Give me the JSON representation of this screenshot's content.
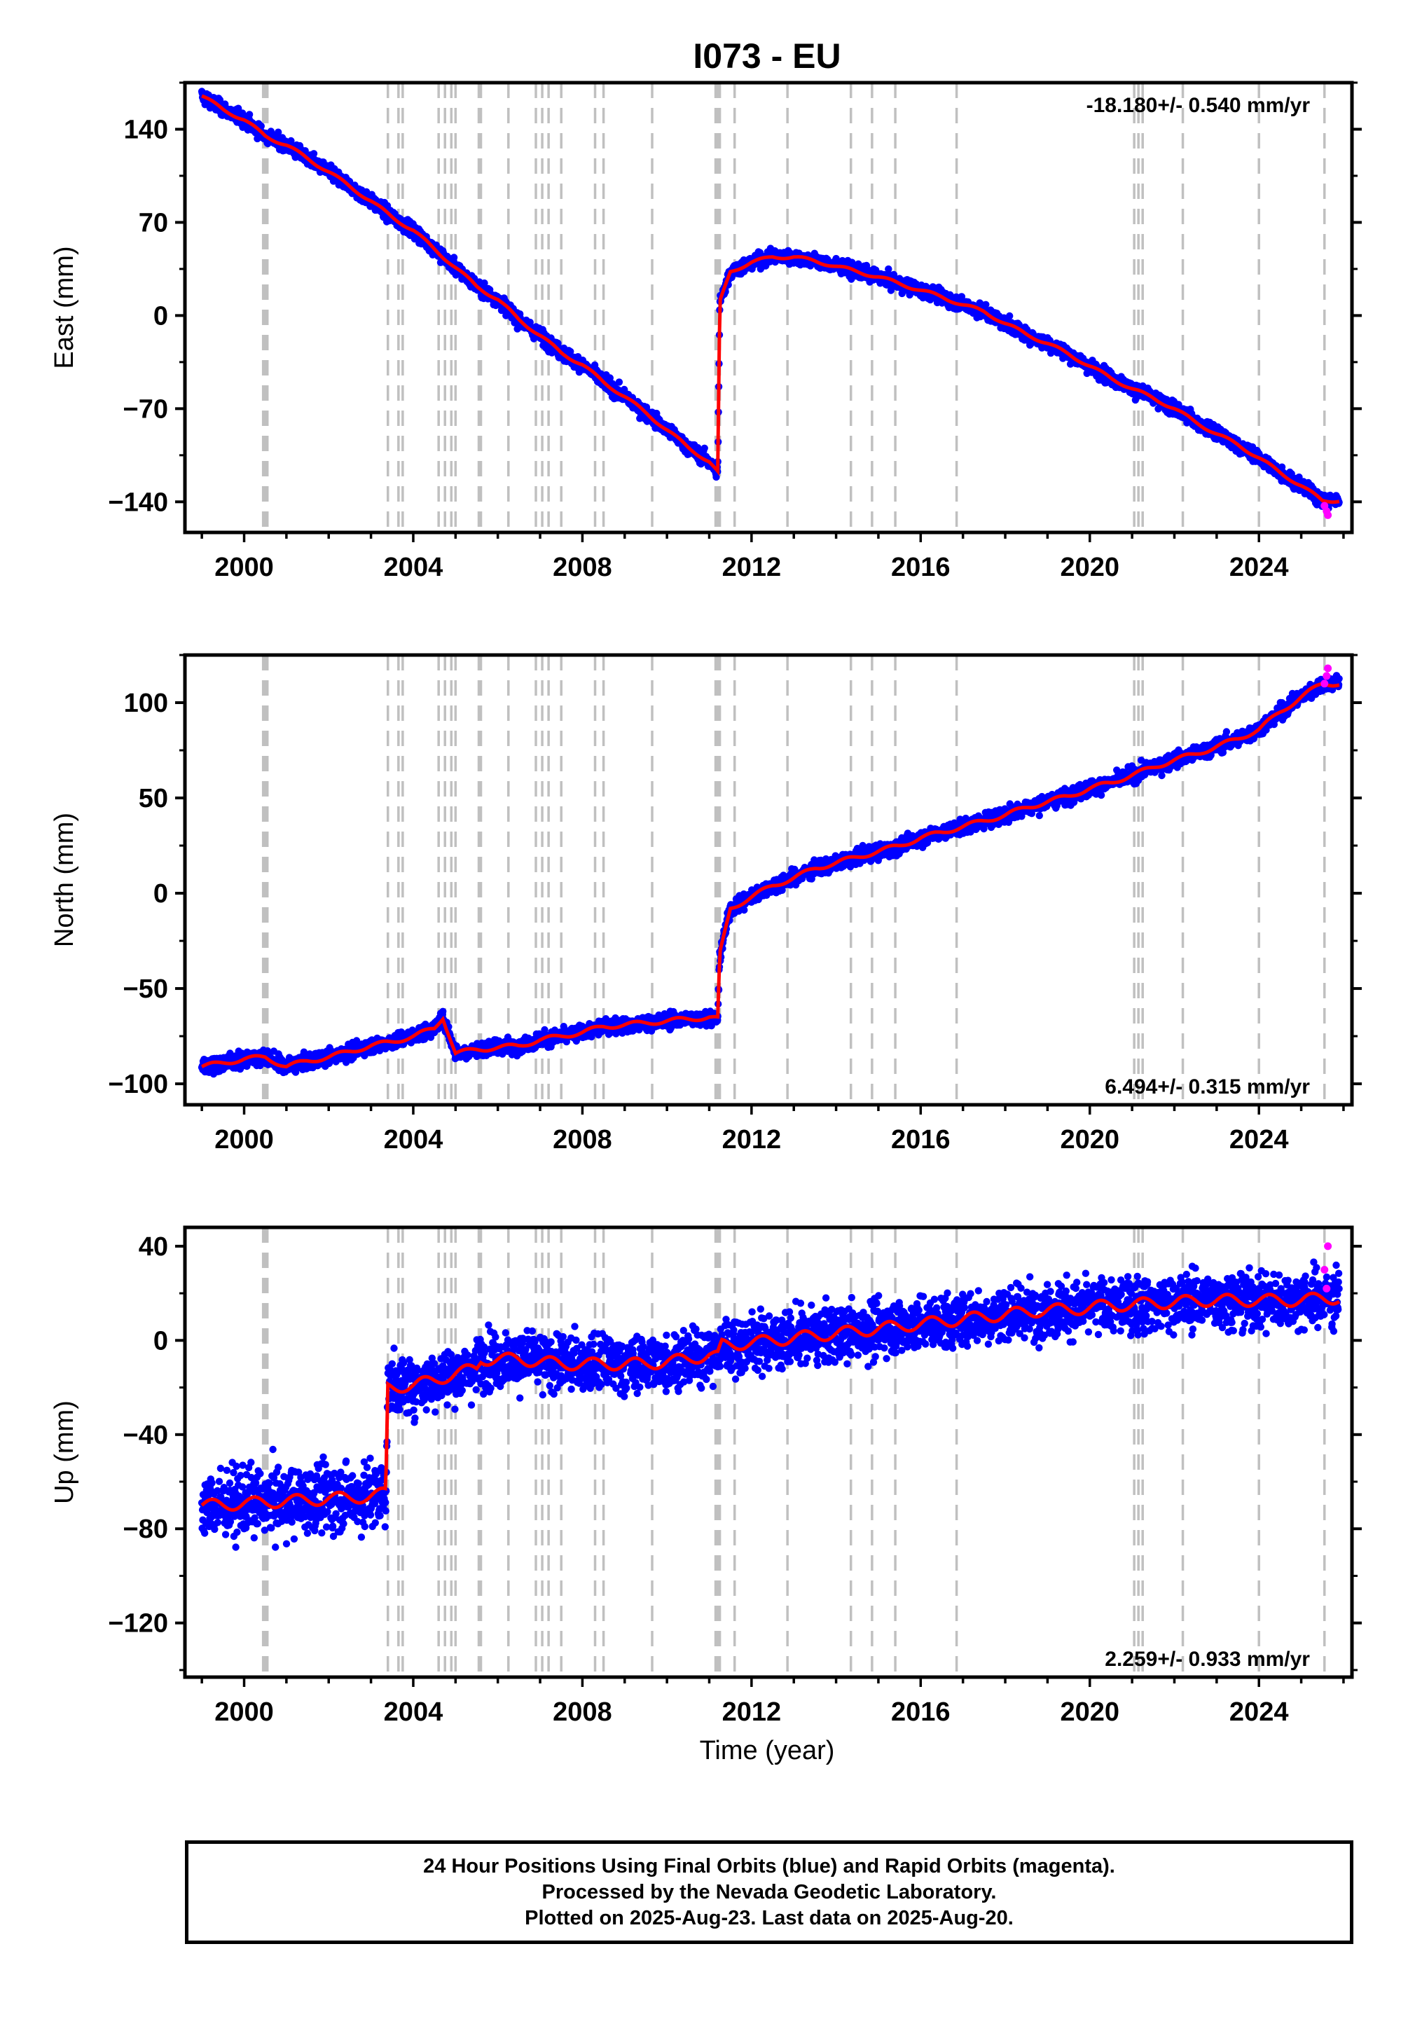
{
  "title": "I073 - EU",
  "x_axis_label": "Time (year)",
  "footer": {
    "line1": "24 Hour Positions Using Final Orbits (blue) and Rapid Orbits (magenta).",
    "line2": "Processed by the Nevada Geodetic Laboratory.",
    "line3": "Plotted on 2025-Aug-23. Last data on 2025-Aug-20."
  },
  "colors": {
    "final_orbits": "#0000ff",
    "rapid_orbits": "#ff00ff",
    "model_fit": "#ff0000",
    "event_lines": "#c0c0c0"
  },
  "chart_data": [
    {
      "type": "scatter",
      "component": "east",
      "ylabel": "East (mm)",
      "rate_text": "-18.180+/- 0.540 mm/yr",
      "rate_position": "top-right",
      "xlim": [
        1998.6,
        2026.2
      ],
      "ylim": [
        -163,
        175
      ],
      "yticks": [
        -140,
        -70,
        0,
        70,
        140
      ],
      "ytick_labels": [
        "−140",
        "−70",
        "0",
        "70",
        "140"
      ],
      "xticks": [
        2000,
        2004,
        2008,
        2012,
        2016,
        2020,
        2024
      ],
      "xtick_labels": [
        "2000",
        "2004",
        "2008",
        "2012",
        "2016",
        "2020",
        "2024"
      ],
      "grid": false,
      "scatter_spread_mm": 4,
      "series": [
        {
          "role": "final_orbits",
          "x": [
            1999.0,
            1999.5,
            2000.0,
            2000.5,
            2001.0,
            2001.5,
            2002.0,
            2002.5,
            2003.0,
            2003.5,
            2004.0,
            2004.5,
            2005.0,
            2005.5,
            2006.0,
            2006.5,
            2007.0,
            2007.5,
            2008.0,
            2008.5,
            2009.0,
            2009.5,
            2010.0,
            2010.5,
            2011.0,
            2011.2,
            2011.25,
            2011.5,
            2012.0,
            2012.5,
            2013.0,
            2013.5,
            2014.0,
            2014.5,
            2015.0,
            2015.5,
            2016.0,
            2016.5,
            2017.0,
            2017.5,
            2018.0,
            2018.5,
            2019.0,
            2019.5,
            2020.0,
            2020.5,
            2021.0,
            2021.5,
            2022.0,
            2022.5,
            2023.0,
            2023.5,
            2024.0,
            2024.5,
            2025.0,
            2025.5
          ],
          "y": [
            165,
            155,
            147,
            135,
            128,
            118,
            108,
            97,
            86,
            74,
            64,
            50,
            36,
            22,
            12,
            -3,
            -15,
            -28,
            -37,
            -50,
            -61,
            -73,
            -86,
            -99,
            -110,
            -118,
            10,
            33,
            40,
            44,
            44,
            41,
            37,
            33,
            29,
            24,
            19,
            14,
            8,
            3,
            -6,
            -14,
            -21,
            -29,
            -38,
            -47,
            -55,
            -62,
            -70,
            -80,
            -89,
            -97,
            -107,
            -118,
            -128,
            -139
          ]
        },
        {
          "role": "rapid_orbits",
          "x": [
            2025.55,
            2025.6,
            2025.63
          ],
          "y": [
            -143,
            -147,
            -150
          ]
        }
      ]
    },
    {
      "type": "scatter",
      "component": "north",
      "ylabel": "North (mm)",
      "rate_text": "6.494+/- 0.315 mm/yr",
      "rate_position": "bottom-right",
      "xlim": [
        1998.6,
        2026.2
      ],
      "ylim": [
        -111,
        125
      ],
      "yticks": [
        -100,
        -50,
        0,
        50,
        100
      ],
      "ytick_labels": [
        "−100",
        "−50",
        "0",
        "50",
        "100"
      ],
      "xticks": [
        2000,
        2004,
        2008,
        2012,
        2016,
        2020,
        2024
      ],
      "xtick_labels": [
        "2000",
        "2004",
        "2008",
        "2012",
        "2016",
        "2020",
        "2024"
      ],
      "grid": false,
      "scatter_spread_mm": 3,
      "series": [
        {
          "role": "final_orbits",
          "x": [
            1999.0,
            1999.5,
            2000.0,
            2000.5,
            2001.0,
            2001.5,
            2002.0,
            2002.5,
            2003.0,
            2003.5,
            2004.0,
            2004.5,
            2004.7,
            2005.0,
            2005.5,
            2006.0,
            2006.5,
            2007.0,
            2007.5,
            2008.0,
            2008.5,
            2009.0,
            2009.5,
            2010.0,
            2010.5,
            2011.0,
            2011.2,
            2011.25,
            2011.5,
            2012.0,
            2012.5,
            2013.0,
            2013.5,
            2014.0,
            2014.5,
            2015.0,
            2015.5,
            2016.0,
            2016.5,
            2017.0,
            2017.5,
            2018.0,
            2018.5,
            2019.0,
            2019.5,
            2020.0,
            2020.5,
            2021.0,
            2021.5,
            2022.0,
            2022.5,
            2023.0,
            2023.5,
            2024.0,
            2024.5,
            2025.0,
            2025.5
          ],
          "y": [
            -91,
            -89,
            -87,
            -86,
            -91,
            -88,
            -86,
            -83,
            -80,
            -78,
            -75,
            -71,
            -65,
            -84,
            -82,
            -81,
            -80,
            -77,
            -75,
            -73,
            -70,
            -69,
            -68,
            -67,
            -66,
            -65,
            -66,
            -32,
            -8,
            -2,
            4,
            8,
            13,
            16,
            19,
            22,
            25,
            29,
            32,
            35,
            38,
            41,
            45,
            48,
            51,
            55,
            58,
            62,
            66,
            70,
            73,
            77,
            81,
            86,
            95,
            103,
            110
          ]
        },
        {
          "role": "rapid_orbits",
          "x": [
            2025.55,
            2025.6,
            2025.63
          ],
          "y": [
            110,
            114,
            118
          ]
        }
      ]
    },
    {
      "type": "scatter",
      "component": "up",
      "ylabel": "Up (mm)",
      "rate_text": "2.259+/- 0.933 mm/yr",
      "rate_position": "bottom-right",
      "xlim": [
        1998.6,
        2026.2
      ],
      "ylim": [
        -143,
        48
      ],
      "yticks": [
        -120,
        -80,
        -40,
        0,
        40
      ],
      "ytick_labels": [
        "−120",
        "−80",
        "−40",
        "0",
        "40"
      ],
      "xticks": [
        2000,
        2004,
        2008,
        2012,
        2016,
        2020,
        2024
      ],
      "xtick_labels": [
        "2000",
        "2004",
        "2008",
        "2012",
        "2016",
        "2020",
        "2024"
      ],
      "grid": false,
      "scatter_spread_mm": 9,
      "series": [
        {
          "role": "final_orbits",
          "x": [
            1999.0,
            1999.5,
            2000.0,
            2000.5,
            2001.0,
            2001.5,
            2002.0,
            2002.5,
            2003.0,
            2003.35,
            2003.4,
            2004.0,
            2004.5,
            2005.0,
            2005.5,
            2005.6,
            2006.0,
            2006.5,
            2007.0,
            2007.5,
            2008.0,
            2008.5,
            2009.0,
            2009.5,
            2010.0,
            2010.5,
            2011.0,
            2011.2,
            2011.3,
            2012.0,
            2012.5,
            2013.0,
            2013.5,
            2014.0,
            2014.5,
            2015.0,
            2015.5,
            2016.0,
            2016.5,
            2017.0,
            2017.5,
            2018.0,
            2018.5,
            2019.0,
            2019.5,
            2020.0,
            2020.5,
            2021.0,
            2021.5,
            2022.0,
            2022.5,
            2023.0,
            2023.5,
            2024.0,
            2024.5,
            2025.0,
            2025.5
          ],
          "y": [
            -70,
            -70,
            -69,
            -69,
            -68,
            -68,
            -67,
            -67,
            -66,
            -65,
            -20,
            -19,
            -17,
            -14,
            -12,
            -8,
            -8,
            -8,
            -9,
            -10,
            -10,
            -10,
            -10,
            -10,
            -9,
            -8,
            -6,
            -7,
            -2,
            -1,
            0,
            1,
            2,
            3,
            4,
            5,
            6,
            7,
            8,
            9,
            10,
            11,
            12,
            13,
            13,
            14,
            15,
            15,
            16,
            16,
            17,
            17,
            17,
            17,
            17,
            17,
            18
          ]
        },
        {
          "role": "rapid_orbits",
          "x": [
            2025.55,
            2025.6,
            2025.63
          ],
          "y": [
            30,
            22,
            40
          ]
        }
      ]
    }
  ],
  "event_lines_x": [
    2000.45,
    2000.5,
    2000.55,
    2003.4,
    2003.65,
    2003.75,
    2004.6,
    2004.75,
    2004.9,
    2005.0,
    2005.55,
    2005.6,
    2006.25,
    2006.9,
    2007.05,
    2007.2,
    2007.5,
    2008.3,
    2008.5,
    2009.65,
    2011.15,
    2011.2,
    2011.25,
    2011.6,
    2012.85,
    2014.35,
    2014.85,
    2015.4,
    2016.85,
    2021.05,
    2021.15,
    2021.25,
    2022.2,
    2024.0,
    2025.55
  ]
}
